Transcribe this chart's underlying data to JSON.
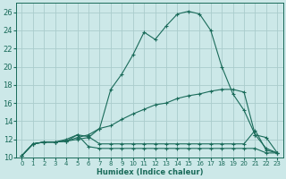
{
  "background_color": "#cce8e8",
  "grid_color": "#aacccc",
  "line_color": "#1a6b5a",
  "xlabel": "Humidex (Indice chaleur)",
  "xlim": [
    -0.5,
    23.5
  ],
  "ylim": [
    10,
    27
  ],
  "xticks": [
    0,
    1,
    2,
    3,
    4,
    5,
    6,
    7,
    8,
    9,
    10,
    11,
    12,
    13,
    14,
    15,
    16,
    17,
    18,
    19,
    20,
    21,
    22,
    23
  ],
  "yticks": [
    10,
    12,
    14,
    16,
    18,
    20,
    22,
    24,
    26
  ],
  "curve1_x": [
    0,
    1,
    2,
    3,
    4,
    5,
    6,
    7,
    8,
    9,
    10,
    11,
    12,
    13,
    14,
    15,
    16,
    17,
    18,
    19,
    20,
    21,
    22,
    23
  ],
  "curve1_y": [
    10.2,
    11.5,
    11.7,
    11.7,
    11.8,
    12.2,
    12.5,
    13.2,
    17.5,
    19.2,
    21.3,
    23.8,
    23.0,
    24.5,
    25.8,
    26.1,
    25.8,
    24.0,
    20.0,
    17.0,
    15.2,
    12.5,
    11.0,
    10.5
  ],
  "curve2_x": [
    0,
    1,
    2,
    3,
    4,
    5,
    6,
    7,
    8,
    9,
    10,
    11,
    12,
    13,
    14,
    15,
    16,
    17,
    18,
    19,
    20,
    21,
    22,
    23
  ],
  "curve2_y": [
    10.2,
    11.5,
    11.7,
    11.7,
    11.8,
    12.0,
    12.2,
    13.2,
    13.5,
    14.2,
    14.8,
    15.3,
    15.8,
    16.0,
    16.5,
    16.8,
    17.0,
    17.3,
    17.5,
    17.5,
    17.2,
    12.5,
    12.2,
    10.5
  ],
  "curve3_x": [
    0,
    1,
    2,
    3,
    4,
    5,
    6,
    7,
    8,
    9,
    10,
    11,
    12,
    13,
    14,
    15,
    16,
    17,
    18,
    19,
    20,
    21,
    22,
    23
  ],
  "curve3_y": [
    10.2,
    11.5,
    11.7,
    11.7,
    12.0,
    12.5,
    11.2,
    11.0,
    11.0,
    11.0,
    11.0,
    11.0,
    11.0,
    11.0,
    11.0,
    11.0,
    11.0,
    11.0,
    11.0,
    11.0,
    11.0,
    11.0,
    10.5,
    10.5
  ],
  "curve4_x": [
    0,
    1,
    2,
    3,
    4,
    5,
    6,
    7,
    8,
    9,
    10,
    11,
    12,
    13,
    14,
    15,
    16,
    17,
    18,
    19,
    20,
    21,
    22,
    23
  ],
  "curve4_y": [
    10.2,
    11.5,
    11.7,
    11.7,
    11.8,
    12.5,
    12.3,
    11.5,
    11.5,
    11.5,
    11.5,
    11.5,
    11.5,
    11.5,
    11.5,
    11.5,
    11.5,
    11.5,
    11.5,
    11.5,
    11.5,
    13.0,
    10.8,
    10.5
  ]
}
